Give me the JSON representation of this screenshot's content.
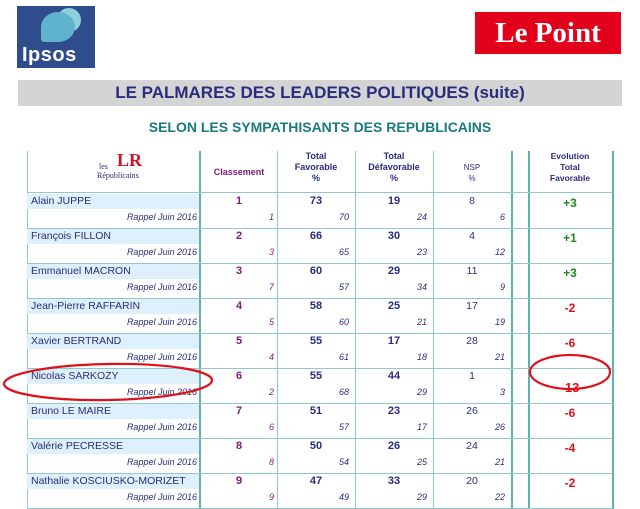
{
  "logos": {
    "ipsos": "Ipsos",
    "lepoint": "Le Point"
  },
  "title": "LE PALMARES DES LEADERS POLITIQUES  (suite)",
  "subtitle": "SELON LES SYMPATHISANTS DES REPUBLICAINS",
  "party_logo": {
    "mark": "LR",
    "line1": "les",
    "line2": "Républicains"
  },
  "headers": {
    "classement": "Classement",
    "total_favorable": [
      "Total",
      "Favorable",
      "%"
    ],
    "total_defavorable": [
      "Total",
      "Défavorable",
      "%"
    ],
    "nsp": [
      "NSP",
      "%"
    ],
    "evolution": [
      "Evolution",
      "Total",
      "Favorable"
    ]
  },
  "rappel_label": "Rappel Juin 2016",
  "rows": [
    {
      "name": "Alain JUPPE",
      "rank": "1",
      "fav": "73",
      "defav": "19",
      "nsp": "8",
      "prev_rank": "1",
      "prev_fav": "70",
      "prev_defav": "24",
      "prev_nsp": "6",
      "evolution": "+3",
      "trend": "up"
    },
    {
      "name": "François FILLON",
      "rank": "2",
      "fav": "66",
      "defav": "30",
      "nsp": "4",
      "prev_rank": "3",
      "prev_fav": "65",
      "prev_defav": "23",
      "prev_nsp": "12",
      "evolution": "+1",
      "trend": "up"
    },
    {
      "name": "Emmanuel MACRON",
      "rank": "3",
      "fav": "60",
      "defav": "29",
      "nsp": "11",
      "prev_rank": "7",
      "prev_fav": "57",
      "prev_defav": "34",
      "prev_nsp": "9",
      "evolution": "+3",
      "trend": "up"
    },
    {
      "name": "Jean-Pierre RAFFARIN",
      "rank": "4",
      "fav": "58",
      "defav": "25",
      "nsp": "17",
      "prev_rank": "5",
      "prev_fav": "60",
      "prev_defav": "21",
      "prev_nsp": "19",
      "evolution": "-2",
      "trend": "down"
    },
    {
      "name": "Xavier BERTRAND",
      "rank": "5",
      "fav": "55",
      "defav": "17",
      "nsp": "28",
      "prev_rank": "4",
      "prev_fav": "61",
      "prev_defav": "18",
      "prev_nsp": "21",
      "evolution": "-6",
      "trend": "down"
    },
    {
      "name": "Nicolas SARKOZY",
      "rank": "6",
      "fav": "55",
      "defav": "44",
      "nsp": "1",
      "prev_rank": "2",
      "prev_fav": "68",
      "prev_defav": "29",
      "prev_nsp": "3",
      "evolution": "-13",
      "trend": "down"
    },
    {
      "name": "Bruno LE MAIRE",
      "rank": "7",
      "fav": "51",
      "defav": "23",
      "nsp": "26",
      "prev_rank": "6",
      "prev_fav": "57",
      "prev_defav": "17",
      "prev_nsp": "26",
      "evolution": "-6",
      "trend": "down"
    },
    {
      "name": "Valérie PECRESSE",
      "rank": "8",
      "fav": "50",
      "defav": "26",
      "nsp": "24",
      "prev_rank": "8",
      "prev_fav": "54",
      "prev_defav": "25",
      "prev_nsp": "21",
      "evolution": "-4",
      "trend": "down"
    },
    {
      "name": "Nathalie KOSCIUSKO-MORIZET",
      "rank": "9",
      "fav": "47",
      "defav": "33",
      "nsp": "20",
      "prev_rank": "9",
      "prev_fav": "49",
      "prev_defav": "29",
      "prev_nsp": "22",
      "evolution": "-2",
      "trend": "down"
    }
  ],
  "colors": {
    "up": "#1e8a1e",
    "down": "#e0101a",
    "annotation": "#e0101a"
  }
}
